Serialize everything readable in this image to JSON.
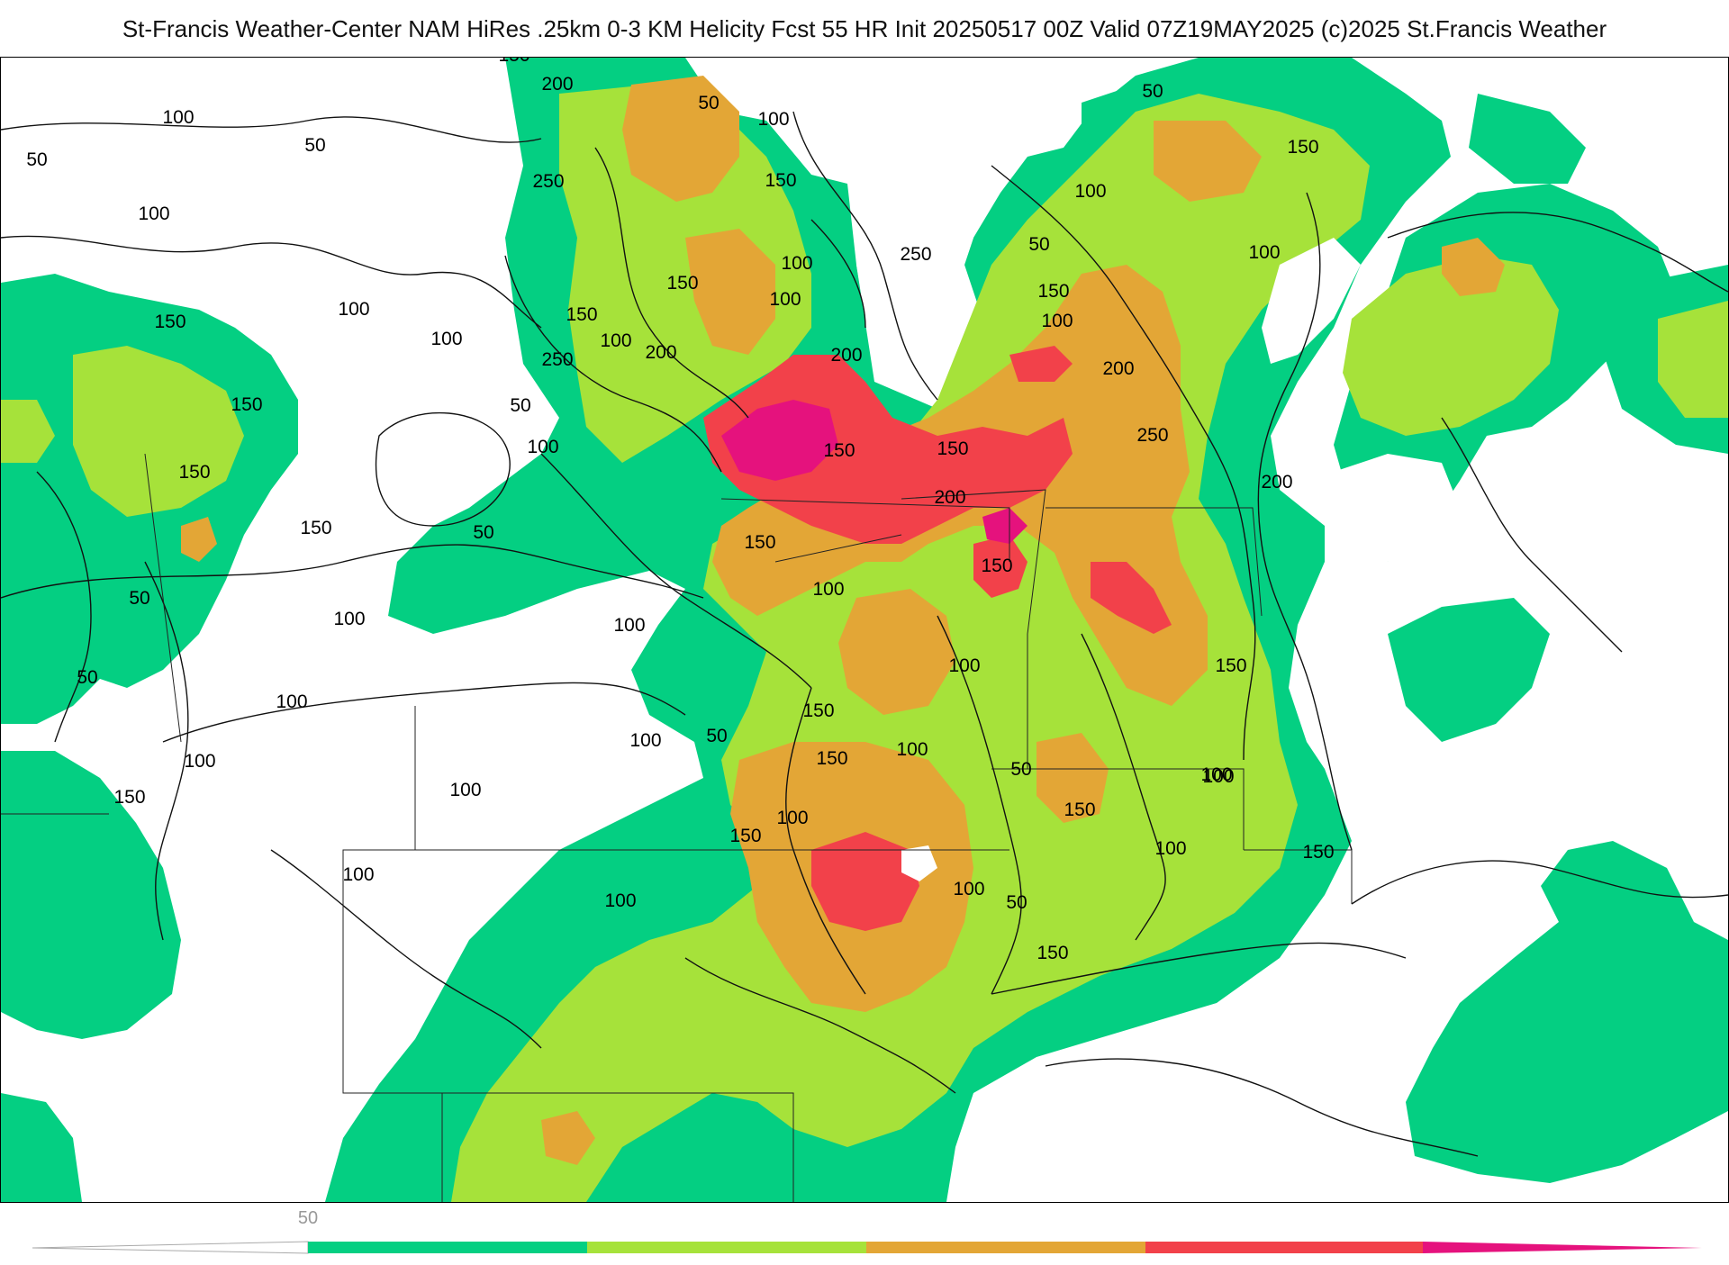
{
  "title": "St-Francis Weather-Center NAM HiRes .25km 0-3 KM Helicity Fcst 55 HR Init 20250517 00Z  Valid 07Z19MAY2025    (c)2025 St.Francis Weather",
  "colors": {
    "c100": "#04cf82",
    "c150": "#a6e23a",
    "c200": "#e3a636",
    "c250": "#f2414a",
    "c300": "#e5127d"
  },
  "contour_labels": [
    "150",
    "200",
    "250",
    "100",
    "50",
    "50",
    "100",
    "50",
    "100",
    "150",
    "100",
    "100",
    "50",
    "150",
    "100",
    "50",
    "100",
    "150",
    "100",
    "200",
    "250",
    "200",
    "250",
    "200",
    "200",
    "100",
    "150",
    "250",
    "150",
    "150",
    "100",
    "100",
    "150",
    "150",
    "50",
    "100",
    "150",
    "50",
    "150",
    "150",
    "200",
    "150",
    "100",
    "150",
    "100",
    "100",
    "50",
    "50",
    "100",
    "150",
    "150",
    "100",
    "150",
    "50",
    "100",
    "100",
    "100",
    "150",
    "100",
    "100",
    "100",
    "150",
    "50",
    "100",
    "150",
    "100",
    "150",
    "100",
    "50",
    "150",
    "100",
    "100"
  ],
  "colorbar": {
    "tick_label": "50",
    "segments": [
      "#04cf82",
      "#a6e23a",
      "#e3a636",
      "#f2414a",
      "#e5127d"
    ]
  }
}
